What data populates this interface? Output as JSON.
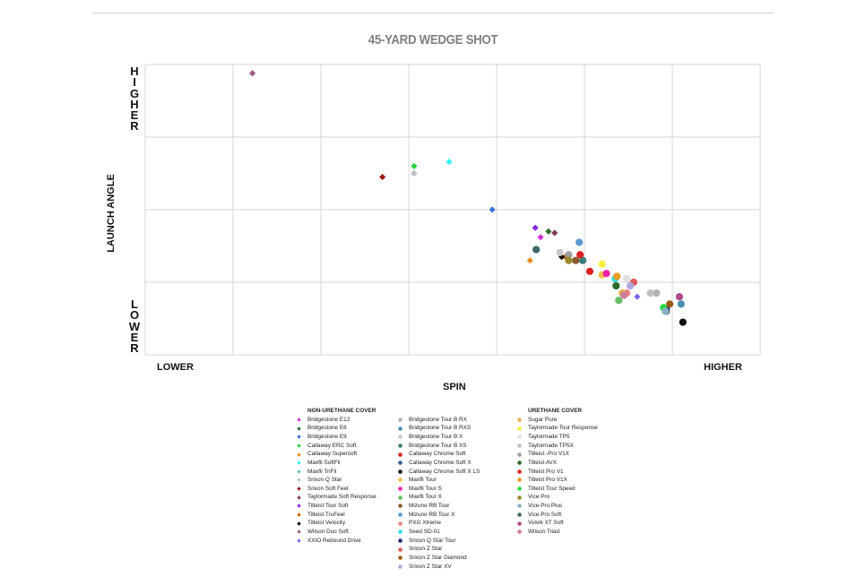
{
  "chart_data": {
    "type": "scatter",
    "title": "45-YARD WEDGE SHOT",
    "xlabel": "SPIN",
    "ylabel": "LAUNCH ANGLE",
    "x_low_label": "LOWER",
    "x_high_label": "HIGHER",
    "y_high_label": "HIGHER",
    "y_low_label": "LOWER",
    "xlim": [
      0,
      7
    ],
    "ylim": [
      0,
      4
    ],
    "grid": true,
    "legend_position": "bottom",
    "legend_groups": [
      {
        "title": "NON-URETHANE COVER",
        "column": 1
      },
      {
        "title": "",
        "column": 2
      },
      {
        "title": "URETHANE COVER",
        "column": 3
      }
    ],
    "series": [
      {
        "name": "Bridgestone E12",
        "color": "#cc33cc",
        "marker": "diamond",
        "group": 0,
        "x": 4.5,
        "y": 1.62
      },
      {
        "name": "Bridgestone E6",
        "color": "#2d6e2d",
        "marker": "diamond",
        "group": 0,
        "x": 4.59,
        "y": 1.7
      },
      {
        "name": "Bridgestone E9",
        "color": "#3a76d6",
        "marker": "diamond",
        "group": 0,
        "x": 3.95,
        "y": 2.0
      },
      {
        "name": "Callaway ERC Soft",
        "color": "#2ecc40",
        "marker": "diamond",
        "group": 0,
        "x": 3.06,
        "y": 2.6
      },
      {
        "name": "Callaway Supersoft",
        "color": "#f08a24",
        "marker": "diamond",
        "group": 0,
        "x": 4.38,
        "y": 1.3
      },
      {
        "name": "Maxfli SoftFli",
        "color": "#33f0ee",
        "marker": "diamond",
        "group": 0,
        "x": 3.46,
        "y": 2.66
      },
      {
        "name": "Maxfli TriFli",
        "color": "#5fc4a8",
        "marker": "diamond",
        "group": 0,
        "x": 3.06,
        "y": 2.5
      },
      {
        "name": "Srixon Q Star",
        "color": "#c0c0c0",
        "marker": "diamond",
        "group": 0,
        "x": 3.06,
        "y": 2.5
      },
      {
        "name": "Srixon Soft Feel",
        "color": "#9e1a1a",
        "marker": "diamond",
        "group": 0,
        "x": 2.7,
        "y": 2.45
      },
      {
        "name": "Taylormade Soft Response",
        "color": "#7a3a5a",
        "marker": "diamond",
        "group": 0,
        "x": 4.66,
        "y": 1.68
      },
      {
        "name": "Titleist Tour Soft",
        "color": "#8a2be2",
        "marker": "diamond",
        "group": 0,
        "x": 4.44,
        "y": 1.75
      },
      {
        "name": "Titleist TruFeel",
        "color": "#cc6600",
        "marker": "diamond",
        "group": 0,
        "x": 4.78,
        "y": 1.35
      },
      {
        "name": "Titleist Velocity",
        "color": "#111111",
        "marker": "diamond",
        "group": 0,
        "x": 4.74,
        "y": 1.35
      },
      {
        "name": "Wilson Duo Soft",
        "color": "#a05a8a",
        "marker": "diamond",
        "group": 0,
        "x": 1.22,
        "y": 3.88
      },
      {
        "name": "XXIO Rebound Drive",
        "color": "#7b68ee",
        "marker": "diamond",
        "group": 0,
        "x": 5.6,
        "y": 0.8
      },
      {
        "name": "Bridgestone Tour B RX",
        "color": "#b0b0b8",
        "marker": "circle",
        "group": 1,
        "x": 5.82,
        "y": 0.85
      },
      {
        "name": "Bridgestone Tour B RXS",
        "color": "#4a8fb0",
        "marker": "circle",
        "group": 1,
        "x": 6.1,
        "y": 0.7
      },
      {
        "name": "Bridgestone Tour B X",
        "color": "#c8c8c8",
        "marker": "circle",
        "group": 1,
        "x": 4.72,
        "y": 1.41
      },
      {
        "name": "Bridgestone Tour B XS",
        "color": "#3a7d7a",
        "marker": "circle",
        "group": 1,
        "x": 4.98,
        "y": 1.3
      },
      {
        "name": "Callaway Chrome Soft",
        "color": "#dd2222",
        "marker": "circle",
        "group": 1,
        "x": 5.06,
        "y": 1.15
      },
      {
        "name": "Callaway Chrome Soft X",
        "color": "#3a5a8a",
        "marker": "circle",
        "group": 1,
        "x": 5.93,
        "y": 0.6
      },
      {
        "name": "Callaway Chrome Soft X LS",
        "color": "#111111",
        "marker": "circle",
        "group": 1,
        "x": 6.12,
        "y": 0.45
      },
      {
        "name": "Maxfli Tour",
        "color": "#f5c04a",
        "marker": "circle",
        "group": 1,
        "x": 5.2,
        "y": 1.1
      },
      {
        "name": "Maxfli Tour S",
        "color": "#ee22aa",
        "marker": "circle",
        "group": 1,
        "x": 5.25,
        "y": 1.12
      },
      {
        "name": "Maxfli Tour X",
        "color": "#66bb66",
        "marker": "circle",
        "group": 1,
        "x": 5.39,
        "y": 0.75
      },
      {
        "name": "Mizuno RB Tour",
        "color": "#8b5a2b",
        "marker": "circle",
        "group": 1,
        "x": 4.9,
        "y": 1.3
      },
      {
        "name": "Mizuno RB Tour X",
        "color": "#5a9ad0",
        "marker": "circle",
        "group": 1,
        "x": 4.94,
        "y": 1.55
      },
      {
        "name": "PXG Xtreme",
        "color": "#ee8080",
        "marker": "circle",
        "group": 1,
        "x": 5.48,
        "y": 0.85
      },
      {
        "name": "Seed SD-01",
        "color": "#33dddd",
        "marker": "circle",
        "group": 1,
        "x": 5.35,
        "y": 1.05
      },
      {
        "name": "Srixon Q Star Tour",
        "color": "#1a2a6a",
        "marker": "circle",
        "group": 1,
        "x": 5.93,
        "y": 0.63
      },
      {
        "name": "Srixon Z Star",
        "color": "#dd5a5a",
        "marker": "circle",
        "group": 1,
        "x": 5.56,
        "y": 1.0
      },
      {
        "name": "Srixon Z Star Diamond",
        "color": "#9e5a1a",
        "marker": "circle",
        "group": 1,
        "x": 5.97,
        "y": 0.7
      },
      {
        "name": "Srixon Z Star XV",
        "color": "#b0a8d8",
        "marker": "circle",
        "group": 1,
        "x": 5.52,
        "y": 0.95
      },
      {
        "name": "Sugar Pure",
        "color": "#e8b050",
        "marker": "circle",
        "group": 1,
        "x": 5.43,
        "y": 0.85
      },
      {
        "name": "Taylormade Tour Response",
        "color": "#f5ee40",
        "marker": "circle",
        "group": 1,
        "x": 5.2,
        "y": 1.25
      },
      {
        "name": "Taylormade TP5",
        "color": "#e0e0e0",
        "marker": "circle",
        "group": 1,
        "x": 5.48,
        "y": 1.05
      },
      {
        "name": "Taylormade TP5X",
        "color": "#c0c0c0",
        "marker": "circle",
        "group": 1,
        "x": 5.75,
        "y": 0.85
      },
      {
        "name": "Titleist -Pro V1X",
        "color": "#a0a0a0",
        "marker": "circle",
        "group": 1,
        "x": 4.82,
        "y": 1.38
      },
      {
        "name": "Titleist AVX",
        "color": "#2a6a2a",
        "marker": "circle",
        "group": 1,
        "x": 5.36,
        "y": 0.95
      },
      {
        "name": "Titleist Pro V1",
        "color": "#dd2222",
        "marker": "circle",
        "group": 1,
        "x": 4.95,
        "y": 1.38
      },
      {
        "name": "Titleist Pro V1X",
        "color": "#ee9922",
        "marker": "circle",
        "group": 1,
        "x": 5.37,
        "y": 1.08
      },
      {
        "name": "Titleist Tour Speed",
        "color": "#22dd44",
        "marker": "circle",
        "group": 1,
        "x": 5.9,
        "y": 0.65
      },
      {
        "name": "Vice Pro",
        "color": "#9a8a2a",
        "marker": "circle",
        "group": 1,
        "x": 4.82,
        "y": 1.3
      },
      {
        "name": "Vice Pro Plus",
        "color": "#8ab0c0",
        "marker": "circle",
        "group": 1,
        "x": 5.92,
        "y": 0.6
      },
      {
        "name": "Vice Pro Soft",
        "color": "#3a6a6a",
        "marker": "circle",
        "group": 1,
        "x": 4.45,
        "y": 1.45
      },
      {
        "name": "Volvik XT Soft",
        "color": "#b04a8a",
        "marker": "circle",
        "group": 1,
        "x": 6.08,
        "y": 0.8
      },
      {
        "name": "Wilson Triad",
        "color": "#cc7a9a",
        "marker": "circle",
        "group": 1,
        "x": 5.45,
        "y": 0.82
      }
    ]
  }
}
